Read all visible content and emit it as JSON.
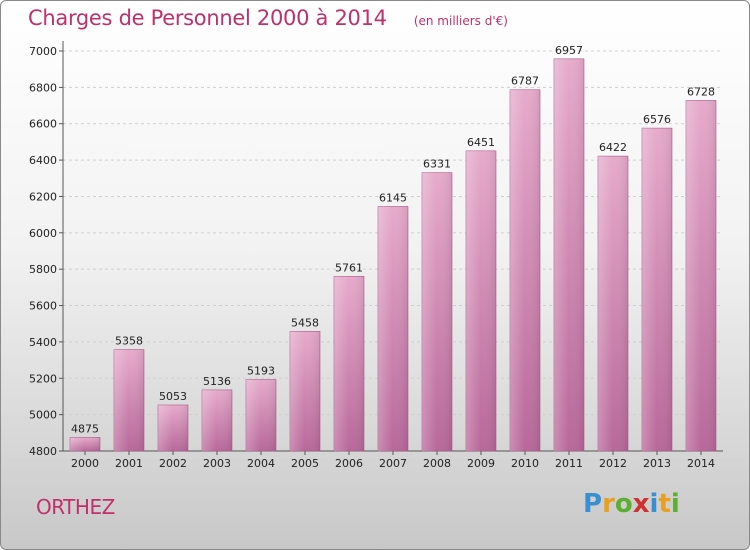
{
  "chart_data": {
    "type": "bar",
    "title": "Charges de Personnel 2000 à 2014",
    "subtitle": "(en milliers d'€)",
    "categories": [
      "2000",
      "2001",
      "2002",
      "2003",
      "2004",
      "2005",
      "2006",
      "2007",
      "2008",
      "2009",
      "2010",
      "2011",
      "2012",
      "2013",
      "2014"
    ],
    "values": [
      4875,
      5358,
      5053,
      5136,
      5193,
      5458,
      5761,
      6145,
      6331,
      6451,
      6787,
      6957,
      6422,
      6576,
      6728
    ],
    "value_labels": [
      "4875",
      "5358",
      "5053",
      "5136",
      "5193",
      "5458",
      "5761",
      "6145",
      "6331",
      "6451",
      "6787",
      "6957",
      "6422",
      "6576",
      "6728"
    ],
    "yticks": [
      "4800",
      "5000",
      "5200",
      "5400",
      "5600",
      "5800",
      "6000",
      "6200",
      "6400",
      "6600",
      "6800",
      "7000"
    ],
    "ylim": [
      4800,
      7000
    ],
    "grid": true,
    "bar_color": "#d98bb6"
  },
  "footer": {
    "place": "ORTHEZ",
    "brand_letters": [
      "P",
      "r",
      "o",
      "x",
      "i",
      "t",
      "i"
    ],
    "brand_colors": [
      "#3a8fd0",
      "#e8a020",
      "#5cb030",
      "#d03030",
      "#3a8fd0",
      "#e8a020",
      "#5cb030"
    ]
  }
}
